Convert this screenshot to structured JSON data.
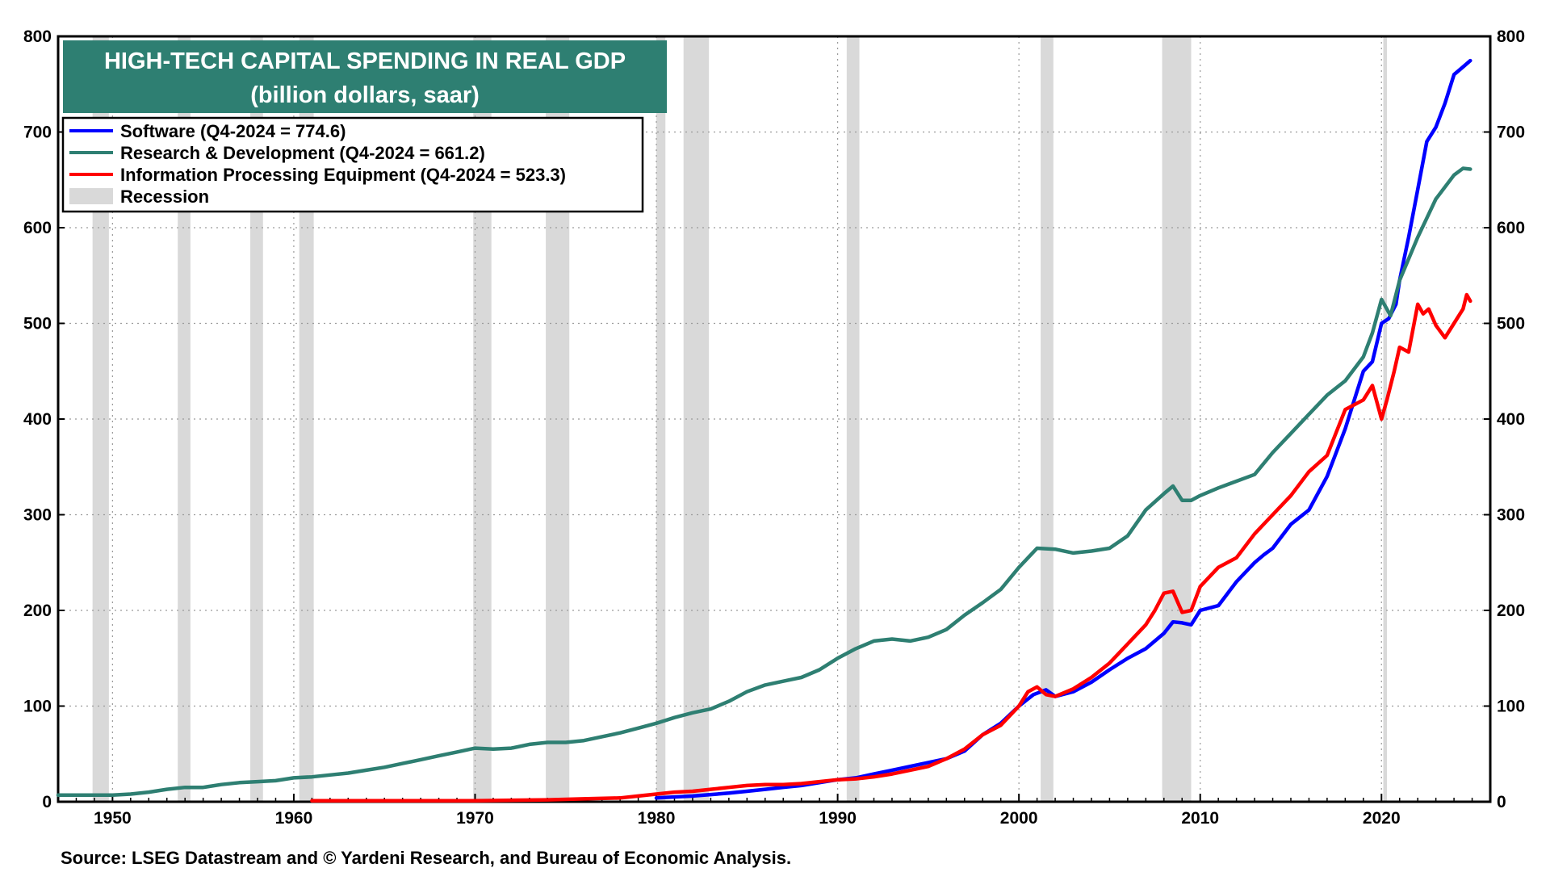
{
  "chart_data": {
    "type": "line",
    "title": "HIGH-TECH CAPITAL SPENDING IN REAL GDP",
    "subtitle": "(billion dollars, saar)",
    "source": "Source: LSEG Datastream and © Yardeni Research, and Bureau of Economic Analysis.",
    "xlim": [
      1947,
      2026
    ],
    "ylim": [
      0,
      800
    ],
    "x_ticks": [
      1950,
      1960,
      1970,
      1980,
      1990,
      2000,
      2010,
      2020
    ],
    "y_ticks": [
      0,
      100,
      200,
      300,
      400,
      500,
      600,
      700,
      800
    ],
    "y_axis_sides": "left and right",
    "grid": true,
    "legend_position": "top-left",
    "recession_label": "Recession",
    "recession_color": "#d9d9d9",
    "title_bg_color": "#2e7f72",
    "recessions": [
      [
        1948.9,
        1949.8
      ],
      [
        1953.6,
        1954.3
      ],
      [
        1957.6,
        1958.3
      ],
      [
        1960.3,
        1961.1
      ],
      [
        1969.9,
        1970.9
      ],
      [
        1973.9,
        1975.2
      ],
      [
        1980.0,
        1980.5
      ],
      [
        1981.5,
        1982.9
      ],
      [
        1990.5,
        1991.2
      ],
      [
        2001.2,
        2001.9
      ],
      [
        2007.9,
        2009.5
      ],
      [
        2020.1,
        2020.3
      ]
    ],
    "series": [
      {
        "name": "Software (Q4-2024 = 774.6)",
        "color": "#0000ff",
        "x": [
          1980,
          1982,
          1984,
          1985,
          1986,
          1987,
          1988,
          1989,
          1990,
          1991,
          1992,
          1993,
          1994,
          1995,
          1996,
          1997,
          1998,
          1999,
          2000,
          2000.8,
          2001.5,
          2002,
          2003,
          2004,
          2005,
          2006,
          2007,
          2008,
          2008.5,
          2009,
          2009.5,
          2010,
          2011,
          2012,
          2013,
          2013.5,
          2014,
          2015,
          2016,
          2017,
          2018,
          2018.5,
          2019,
          2019.5,
          2020,
          2020.4,
          2020.8,
          2021,
          2021.5,
          2022,
          2022.5,
          2023,
          2023.5,
          2024,
          2024.5,
          2024.9
        ],
        "values": [
          4,
          6,
          9,
          11,
          13,
          15,
          17,
          20,
          23,
          25,
          29,
          33,
          37,
          41,
          45,
          53,
          70,
          82,
          100,
          112,
          117,
          110,
          115,
          125,
          138,
          150,
          160,
          176,
          188,
          187,
          185,
          200,
          205,
          230,
          250,
          258,
          265,
          290,
          305,
          340,
          390,
          420,
          450,
          460,
          500,
          505,
          520,
          545,
          590,
          640,
          690,
          705,
          730,
          760,
          768,
          774.6
        ]
      },
      {
        "name": "Research & Development (Q4-2024 = 661.2)",
        "color": "#2e7f72",
        "x": [
          1947,
          1949,
          1950,
          1951,
          1952,
          1953,
          1954,
          1955,
          1956,
          1957,
          1958,
          1959,
          1960,
          1961,
          1962,
          1963,
          1964,
          1965,
          1966,
          1967,
          1968,
          1969,
          1970,
          1971,
          1972,
          1973,
          1974,
          1975,
          1976,
          1977,
          1978,
          1979,
          1980,
          1981,
          1982,
          1983,
          1984,
          1985,
          1986,
          1987,
          1988,
          1989,
          1990,
          1991,
          1992,
          1993,
          1994,
          1995,
          1996,
          1997,
          1998,
          1999,
          2000,
          2001,
          2002,
          2003,
          2004,
          2005,
          2006,
          2007,
          2008,
          2008.5,
          2009,
          2009.5,
          2010,
          2011,
          2012,
          2013,
          2014,
          2015,
          2016,
          2017,
          2018,
          2019,
          2019.5,
          2020,
          2020.5,
          2021,
          2022,
          2023,
          2024,
          2024.5,
          2024.9
        ],
        "values": [
          7,
          7,
          7,
          8,
          10,
          13,
          15,
          15,
          18,
          20,
          21,
          22,
          25,
          26,
          28,
          30,
          33,
          36,
          40,
          44,
          48,
          52,
          56,
          55,
          56,
          60,
          62,
          62,
          64,
          68,
          72,
          77,
          82,
          88,
          93,
          97,
          105,
          115,
          122,
          126,
          130,
          138,
          150,
          160,
          168,
          170,
          168,
          172,
          180,
          195,
          208,
          222,
          245,
          265,
          264,
          260,
          262,
          265,
          278,
          305,
          322,
          330,
          315,
          315,
          320,
          328,
          335,
          342,
          365,
          385,
          405,
          425,
          440,
          465,
          490,
          525,
          508,
          545,
          590,
          630,
          655,
          662,
          661.2
        ]
      },
      {
        "name": "Information Processing Equipment (Q4-2024 = 523.3)",
        "color": "#ff0000",
        "x": [
          1961,
          1965,
          1970,
          1974,
          1976,
          1978,
          1979,
          1980,
          1981,
          1982,
          1983,
          1984,
          1985,
          1986,
          1987,
          1988,
          1989,
          1990,
          1991,
          1992,
          1993,
          1994,
          1995,
          1996,
          1997,
          1998,
          1999,
          2000,
          2000.5,
          2001,
          2001.5,
          2002,
          2003,
          2004,
          2005,
          2006,
          2007,
          2007.5,
          2008,
          2008.5,
          2009,
          2009.5,
          2010,
          2011,
          2012,
          2013,
          2014,
          2015,
          2016,
          2017,
          2018,
          2019,
          2019.5,
          2020,
          2020.3,
          2020.7,
          2021,
          2021.5,
          2022,
          2022.3,
          2022.6,
          2023,
          2023.5,
          2024,
          2024.5,
          2024.7,
          2024.9
        ],
        "values": [
          1,
          1,
          1,
          2,
          3,
          4,
          6,
          8,
          10,
          11,
          13,
          15,
          17,
          18,
          18,
          19,
          21,
          23,
          24,
          26,
          29,
          33,
          37,
          45,
          55,
          70,
          80,
          100,
          115,
          120,
          112,
          110,
          118,
          130,
          145,
          165,
          185,
          200,
          218,
          220,
          198,
          200,
          225,
          245,
          255,
          280,
          300,
          320,
          345,
          362,
          410,
          420,
          435,
          400,
          420,
          450,
          475,
          470,
          520,
          510,
          515,
          498,
          485,
          500,
          515,
          530,
          523.3
        ]
      }
    ]
  }
}
